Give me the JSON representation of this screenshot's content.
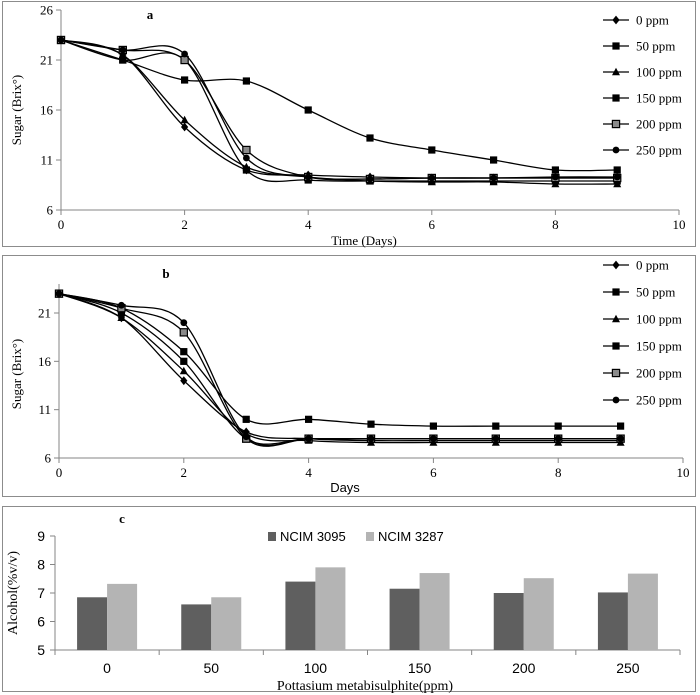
{
  "chart_data": [
    {
      "type": "line",
      "title": "a",
      "xlabel": "Time (Days)",
      "ylabel": "Sugar (Brix°)",
      "xlim": [
        0,
        10
      ],
      "ylim": [
        6,
        26
      ],
      "xticks": [
        "0",
        "2",
        "4",
        "6",
        "8",
        "10"
      ],
      "yticks": [
        "6",
        "11",
        "16",
        "21",
        "26"
      ],
      "legend_position": "right",
      "x": [
        0,
        1,
        2,
        3,
        4,
        5,
        6,
        7,
        8,
        9
      ],
      "series": [
        {
          "name": "0 ppm",
          "marker": "diamond",
          "values": [
            23,
            21.5,
            14.3,
            10,
            9.5,
            9.3,
            9.2,
            9.2,
            9.2,
            9.2
          ]
        },
        {
          "name": "50 ppm",
          "marker": "square",
          "values": [
            23,
            21,
            19,
            18.9,
            16,
            13.2,
            12,
            11,
            10,
            10
          ]
        },
        {
          "name": "100 ppm",
          "marker": "triangle",
          "values": [
            23,
            21.5,
            15,
            10.3,
            9.3,
            8.9,
            8.8,
            8.8,
            8.6,
            8.6
          ]
        },
        {
          "name": "150 ppm",
          "marker": "square",
          "values": [
            23,
            21,
            21,
            10,
            9,
            8.9,
            8.9,
            8.9,
            8.9,
            8.9
          ]
        },
        {
          "name": "200 ppm",
          "marker": "hatched-square",
          "values": [
            23,
            22,
            21,
            12,
            9.3,
            9.1,
            9.2,
            9.2,
            9.2,
            9.2
          ]
        },
        {
          "name": "250 ppm",
          "marker": "circle",
          "values": [
            23,
            22,
            21.6,
            11.2,
            9.3,
            9.1,
            9.2,
            9.2,
            9.3,
            9.3
          ]
        }
      ]
    },
    {
      "type": "line",
      "title": "b",
      "xlabel": "Days",
      "ylabel": "Sugar (Brix°)",
      "xlim": [
        0,
        10
      ],
      "ylim": [
        6,
        24
      ],
      "xticks": [
        "0",
        "2",
        "4",
        "6",
        "8",
        "10"
      ],
      "yticks": [
        "6",
        "11",
        "16",
        "21"
      ],
      "legend_position": "right",
      "x": [
        0,
        1,
        2,
        3,
        4,
        5,
        6,
        7,
        8,
        9
      ],
      "series": [
        {
          "name": "0 ppm",
          "marker": "diamond",
          "values": [
            23,
            20.5,
            14,
            8.7,
            8,
            7.8,
            7.8,
            7.8,
            7.8,
            7.8
          ]
        },
        {
          "name": "50 ppm",
          "marker": "square",
          "values": [
            23,
            21.5,
            17,
            10,
            10,
            9.5,
            9.3,
            9.3,
            9.3,
            9.3
          ]
        },
        {
          "name": "100 ppm",
          "marker": "triangle",
          "values": [
            23,
            20.5,
            15,
            8.5,
            7.8,
            7.6,
            7.6,
            7.6,
            7.6,
            7.6
          ]
        },
        {
          "name": "150 ppm",
          "marker": "square",
          "values": [
            23,
            21,
            16,
            8,
            8,
            8,
            8,
            8,
            8,
            8
          ]
        },
        {
          "name": "200 ppm",
          "marker": "hatched-square",
          "values": [
            23,
            21.5,
            19,
            8,
            8,
            8,
            8,
            8,
            8,
            8
          ]
        },
        {
          "name": "250 ppm",
          "marker": "circle",
          "values": [
            23,
            21.8,
            20,
            8.2,
            8,
            8,
            8,
            8,
            8,
            8
          ]
        }
      ]
    },
    {
      "type": "bar",
      "title": "c",
      "xlabel": "Pottasium metabisulphite(ppm)",
      "ylabel": "Alcohol(%v/v)",
      "ylim": [
        5,
        9
      ],
      "yticks": [
        "5",
        "6",
        "7",
        "8",
        "9"
      ],
      "legend_position": "top",
      "categories": [
        "0",
        "50",
        "100",
        "150",
        "200",
        "250"
      ],
      "series": [
        {
          "name": "NCIM 3095",
          "color": "#5f5f5f",
          "values": [
            6.85,
            6.6,
            7.4,
            7.15,
            7.0,
            7.02
          ]
        },
        {
          "name": "NCIM 3287",
          "color": "#b4b4b4",
          "values": [
            7.32,
            6.85,
            7.9,
            7.7,
            7.52,
            7.68
          ]
        }
      ]
    }
  ]
}
